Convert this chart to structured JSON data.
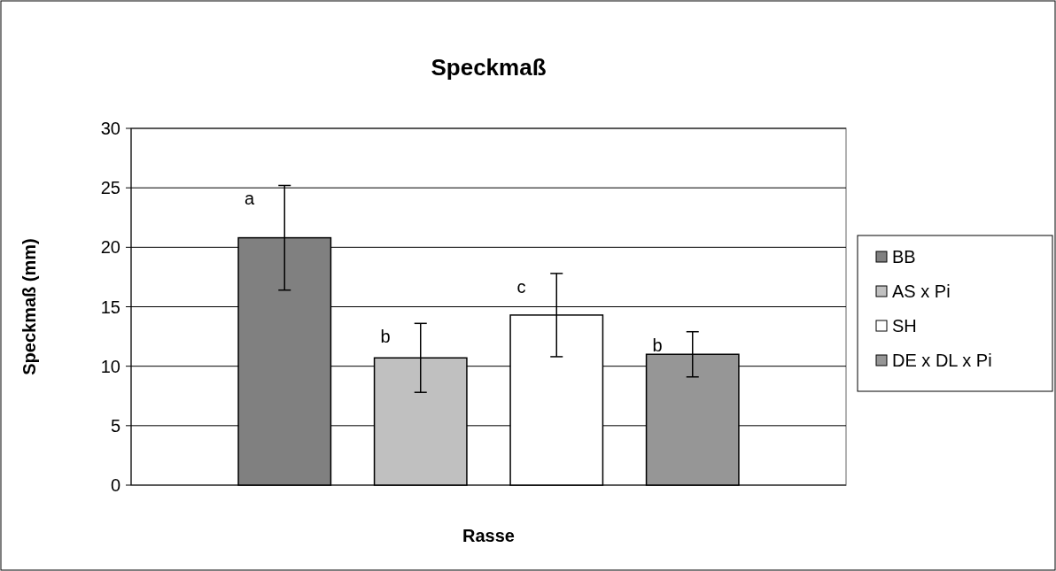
{
  "chart_data": {
    "type": "bar",
    "title": "Speckmaß",
    "xlabel": "Rasse",
    "ylabel": "Speckmaß (mm)",
    "categories": [
      null
    ],
    "series": [
      {
        "name": "BB",
        "color": "#808080",
        "values": [
          20.8
        ],
        "errors": [
          4.4
        ]
      },
      {
        "name": "AS x Pi",
        "color": "#c0c0c0",
        "values": [
          10.7
        ],
        "errors": [
          2.9
        ]
      },
      {
        "name": "SH",
        "color": "#ffffff",
        "values": [
          14.3
        ],
        "errors": [
          3.5
        ]
      },
      {
        "name": "DE x DL x Pi",
        "color": "#969696",
        "values": [
          11.0
        ],
        "errors": [
          1.9
        ]
      }
    ],
    "annotations": [
      "a",
      "b",
      "c",
      "b"
    ],
    "ylim": [
      0,
      30
    ],
    "yticks": [
      0,
      5,
      10,
      15,
      20,
      25,
      30
    ],
    "grid": "y",
    "legend": "right"
  }
}
